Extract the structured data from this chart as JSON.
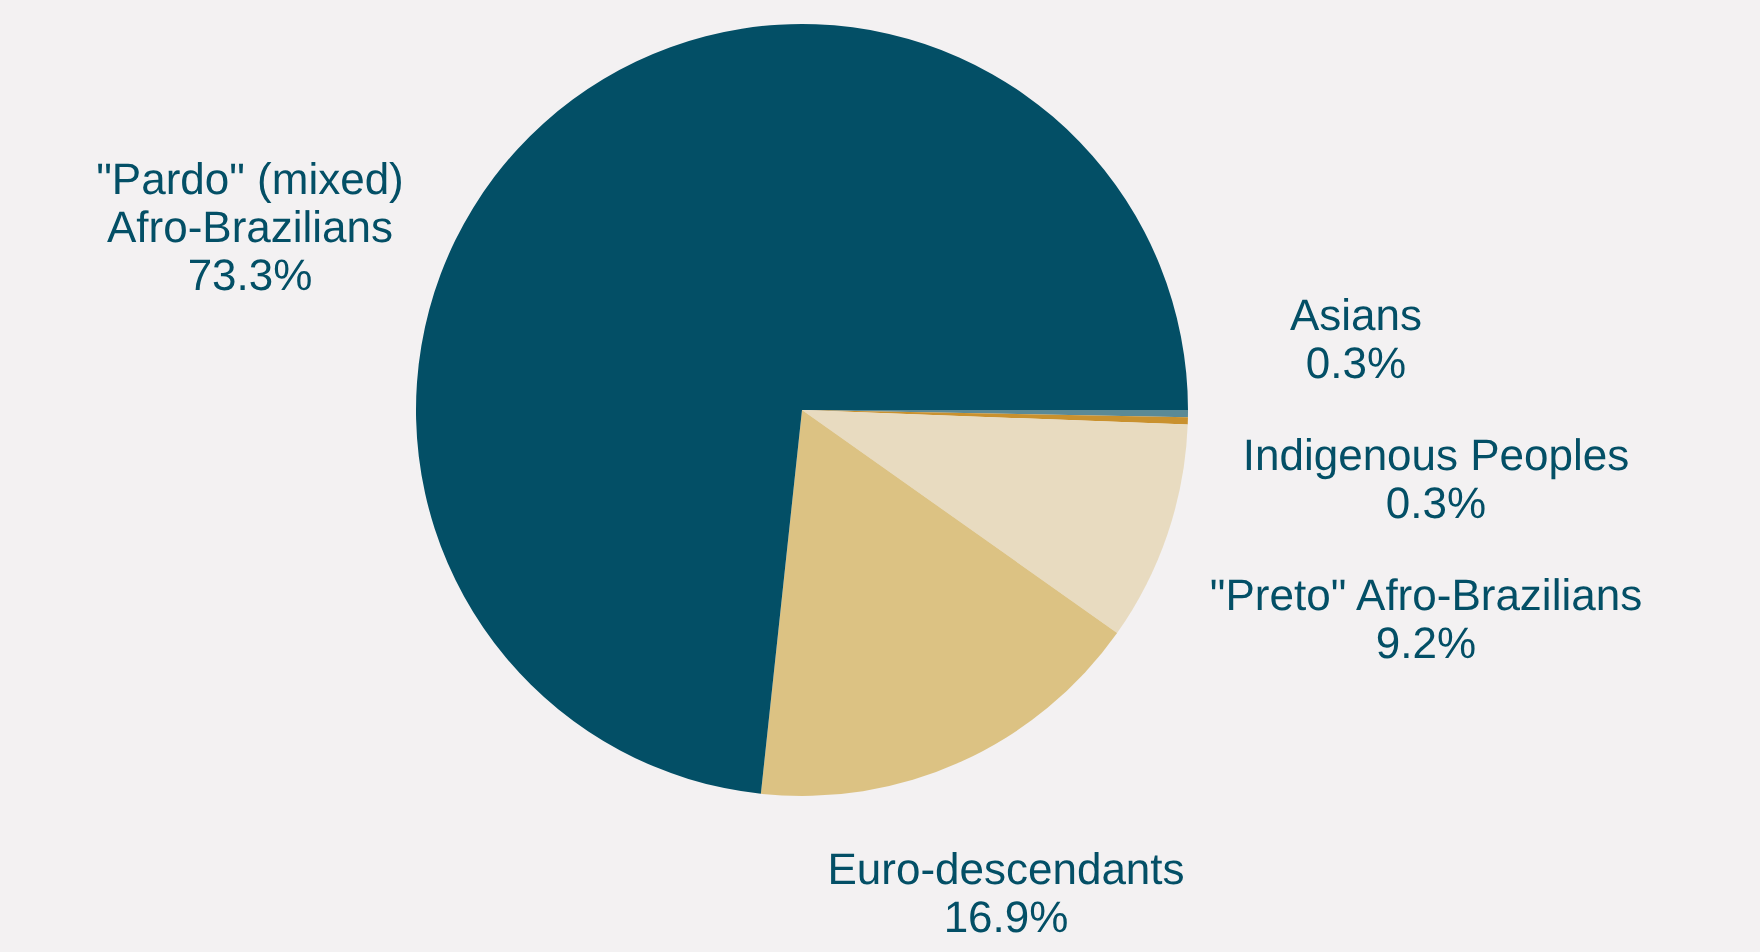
{
  "chart_data": {
    "type": "pie",
    "categories": [
      "Asians",
      "Indigenous Peoples",
      "\"Preto\" Afro-Brazilians",
      "Euro-descendants",
      "\"Pardo\" (mixed) Afro-Brazilians"
    ],
    "values": [
      0.3,
      0.3,
      9.2,
      16.9,
      73.3
    ],
    "colors": [
      "#5b8a96",
      "#c9912e",
      "#e8dbc0",
      "#dcc283",
      "#034f66"
    ],
    "value_labels": [
      "0.3%",
      "0.3%",
      "9.2%",
      "16.9%",
      "73.3%"
    ]
  }
}
